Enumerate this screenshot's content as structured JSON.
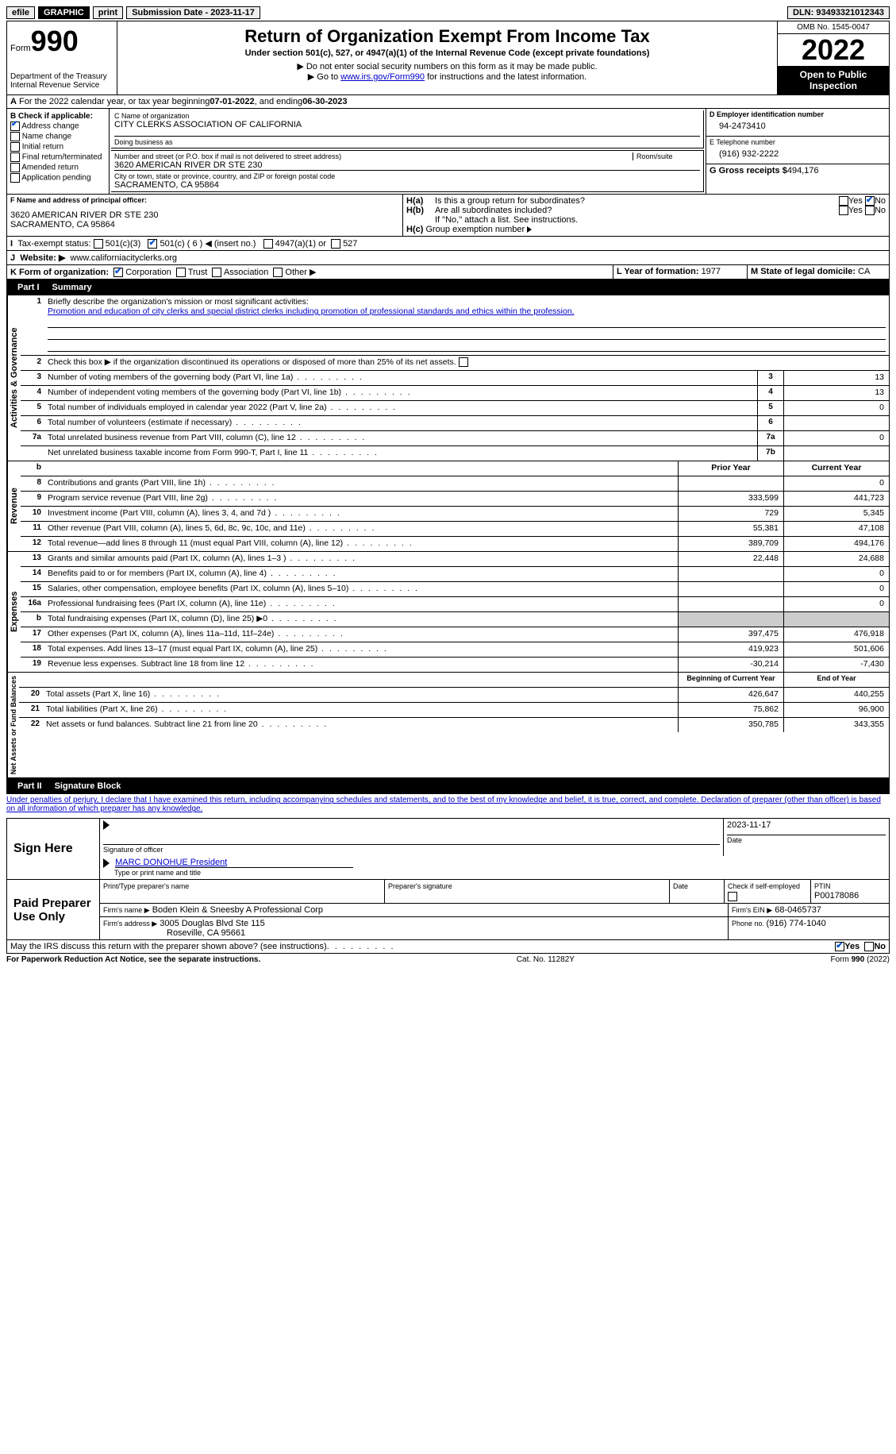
{
  "topbar": {
    "efile": "efile",
    "graphic": "GRAPHIC",
    "print": "print",
    "submission_label": "Submission Date - ",
    "submission_date": "2023-11-17",
    "dln_label": "DLN: ",
    "dln": "93493321012343"
  },
  "header": {
    "form_word": "Form",
    "form_number": "990",
    "dept": "Department of the Treasury\nInternal Revenue Service",
    "title": "Return of Organization Exempt From Income Tax",
    "subtitle": "Under section 501(c), 527, or 4947(a)(1) of the Internal Revenue Code (except private foundations)",
    "note1": "Do not enter social security numbers on this form as it may be made public.",
    "note2_pre": "Go to ",
    "note2_link": "www.irs.gov/Form990",
    "note2_post": " for instructions and the latest information.",
    "omb": "OMB No. 1545-0047",
    "year": "2022",
    "inspect": "Open to Public Inspection"
  },
  "line_a": {
    "text": "For the 2022 calendar year, or tax year beginning ",
    "begin": "07-01-2022",
    "mid": " , and ending ",
    "end": "06-30-2023"
  },
  "section_b": {
    "label": "B Check if applicable:",
    "items": [
      "Address change",
      "Name change",
      "Initial return",
      "Final return/terminated",
      "Amended return",
      "Application pending"
    ],
    "checked": [
      true,
      false,
      false,
      false,
      false,
      false
    ]
  },
  "section_c": {
    "name_label": "C Name of organization",
    "org": "CITY CLERKS ASSOCIATION OF CALIFORNIA",
    "dba": "Doing business as",
    "addr_label": "Number and street (or P.O. box if mail is not delivered to street address)",
    "room_label": "Room/suite",
    "addr": "3620 AMERICAN RIVER DR STE 230",
    "city_label": "City or town, state or province, country, and ZIP or foreign postal code",
    "city": "SACRAMENTO, CA  95864"
  },
  "section_d": {
    "label": "D Employer identification number",
    "ein": "94-2473410"
  },
  "section_e": {
    "label": "E Telephone number",
    "phone": "(916) 932-2222"
  },
  "section_g": {
    "label": "G Gross receipts $ ",
    "amount": "494,176"
  },
  "section_f": {
    "label": "F Name and address of principal officer:",
    "addr1": "3620 AMERICAN RIVER DR STE 230",
    "addr2": "SACRAMENTO, CA  95864"
  },
  "section_h": {
    "ha": "Is this a group return for subordinates?",
    "hb": "Are all subordinates included?",
    "hb_note": "If \"No,\" attach a list. See instructions.",
    "hc": "Group exemption number",
    "yes": "Yes",
    "no": "No"
  },
  "line_i": {
    "label": "Tax-exempt status:",
    "opts": [
      "501(c)(3)",
      "501(c) ( 6 ) ◀ (insert no.)",
      "4947(a)(1) or",
      "527"
    ]
  },
  "line_j": {
    "label": "Website: ▶",
    "url": "www.californiacityclerks.org"
  },
  "line_k": {
    "label": "K Form of organization:",
    "opts": [
      "Corporation",
      "Trust",
      "Association",
      "Other ▶"
    ]
  },
  "line_l": {
    "label": "L Year of formation: ",
    "val": "1977"
  },
  "line_m": {
    "label": "M State of legal domicile: ",
    "val": "CA"
  },
  "part1": {
    "tab": "Part I",
    "title": "Summary"
  },
  "summary": {
    "q1": "Briefly describe the organization's mission or most significant activities:",
    "mission": "Promotion and education of city clerks and special district clerks including promotion of professional standards and ethics within the profession.",
    "q2": "Check this box ▶ if the organization discontinued its operations or disposed of more than 25% of its net assets.",
    "rows_ag": [
      {
        "n": "3",
        "label": "Number of voting members of the governing body (Part VI, line 1a)",
        "box": "3",
        "v": "13"
      },
      {
        "n": "4",
        "label": "Number of independent voting members of the governing body (Part VI, line 1b)",
        "box": "4",
        "v": "13"
      },
      {
        "n": "5",
        "label": "Total number of individuals employed in calendar year 2022 (Part V, line 2a)",
        "box": "5",
        "v": "0"
      },
      {
        "n": "6",
        "label": "Total number of volunteers (estimate if necessary)",
        "box": "6",
        "v": ""
      },
      {
        "n": "7a",
        "label": "Total unrelated business revenue from Part VIII, column (C), line 12",
        "box": "7a",
        "v": "0"
      },
      {
        "n": "",
        "label": "Net unrelated business taxable income from Form 990-T, Part I, line 11",
        "box": "7b",
        "v": ""
      }
    ],
    "col_headers": {
      "n": "b",
      "prior": "Prior Year",
      "current": "Current Year"
    },
    "rev": [
      {
        "n": "8",
        "label": "Contributions and grants (Part VIII, line 1h)",
        "p": "",
        "c": "0"
      },
      {
        "n": "9",
        "label": "Program service revenue (Part VIII, line 2g)",
        "p": "333,599",
        "c": "441,723"
      },
      {
        "n": "10",
        "label": "Investment income (Part VIII, column (A), lines 3, 4, and 7d )",
        "p": "729",
        "c": "5,345"
      },
      {
        "n": "11",
        "label": "Other revenue (Part VIII, column (A), lines 5, 6d, 8c, 9c, 10c, and 11e)",
        "p": "55,381",
        "c": "47,108"
      },
      {
        "n": "12",
        "label": "Total revenue—add lines 8 through 11 (must equal Part VIII, column (A), line 12)",
        "p": "389,709",
        "c": "494,176"
      }
    ],
    "exp": [
      {
        "n": "13",
        "label": "Grants and similar amounts paid (Part IX, column (A), lines 1–3 )",
        "p": "22,448",
        "c": "24,688"
      },
      {
        "n": "14",
        "label": "Benefits paid to or for members (Part IX, column (A), line 4)",
        "p": "",
        "c": "0"
      },
      {
        "n": "15",
        "label": "Salaries, other compensation, employee benefits (Part IX, column (A), lines 5–10)",
        "p": "",
        "c": "0"
      },
      {
        "n": "16a",
        "label": "Professional fundraising fees (Part IX, column (A), line 11e)",
        "p": "",
        "c": "0"
      },
      {
        "n": "b",
        "label": "Total fundraising expenses (Part IX, column (D), line 25) ▶0",
        "p": "grey",
        "c": "grey"
      },
      {
        "n": "17",
        "label": "Other expenses (Part IX, column (A), lines 11a–11d, 11f–24e)",
        "p": "397,475",
        "c": "476,918"
      },
      {
        "n": "18",
        "label": "Total expenses. Add lines 13–17 (must equal Part IX, column (A), line 25)",
        "p": "419,923",
        "c": "501,606"
      },
      {
        "n": "19",
        "label": "Revenue less expenses. Subtract line 18 from line 12",
        "p": "-30,214",
        "c": "-7,430"
      }
    ],
    "net_headers": {
      "prior": "Beginning of Current Year",
      "current": "End of Year"
    },
    "net": [
      {
        "n": "20",
        "label": "Total assets (Part X, line 16)",
        "p": "426,647",
        "c": "440,255"
      },
      {
        "n": "21",
        "label": "Total liabilities (Part X, line 26)",
        "p": "75,862",
        "c": "96,900"
      },
      {
        "n": "22",
        "label": "Net assets or fund balances. Subtract line 21 from line 20",
        "p": "350,785",
        "c": "343,355"
      }
    ],
    "vert": {
      "ag": "Activities & Governance",
      "rev": "Revenue",
      "exp": "Expenses",
      "net": "Net Assets or Fund Balances"
    }
  },
  "part2": {
    "tab": "Part II",
    "title": "Signature Block"
  },
  "sig": {
    "perjury": "Under penalties of perjury, I declare that I have examined this return, including accompanying schedules and statements, and to the best of my knowledge and belief, it is true, correct, and complete. Declaration of preparer (other than officer) is based on all information of which preparer has any knowledge.",
    "sign_here": "Sign Here",
    "sig_officer": "Signature of officer",
    "date_label": "Date",
    "sig_date": "2023-11-17",
    "name_title": "MARC DONOHUE  President",
    "name_title_label": "Type or print name and title",
    "paid": "Paid Preparer Use Only",
    "prep_name_label": "Print/Type preparer's name",
    "prep_sig_label": "Preparer's signature",
    "check_self": "Check          if self-employed",
    "ptin_label": "PTIN",
    "ptin": "P00178086",
    "firm_name_label": "Firm's name      ▶",
    "firm_name": "Boden Klein & Sneesby A Professional Corp",
    "firm_ein_label": "Firm's EIN ▶",
    "firm_ein": "68-0465737",
    "firm_addr_label": "Firm's address ▶",
    "firm_addr1": "3005 Douglas Blvd Ste 115",
    "firm_addr2": "Roseville, CA  95661",
    "firm_phone_label": "Phone no. ",
    "firm_phone": "(916) 774-1040",
    "discuss": "May the IRS discuss this return with the preparer shown above? (see instructions)"
  },
  "footer": {
    "left": "For Paperwork Reduction Act Notice, see the separate instructions.",
    "mid": "Cat. No. 11282Y",
    "right": "Form 990 (2022)"
  }
}
